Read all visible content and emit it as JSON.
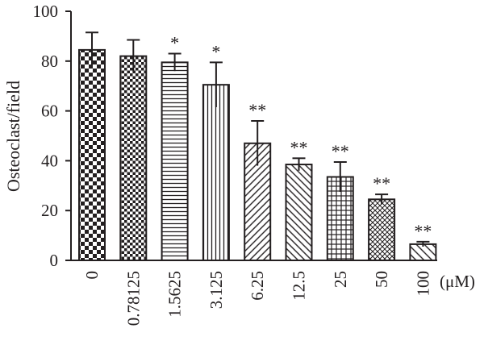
{
  "chart_data": {
    "type": "bar",
    "ylabel": "Osteoclast/field",
    "x_unit_label": "(μM)",
    "ylim": [
      0,
      100
    ],
    "yticks": [
      0,
      20,
      40,
      60,
      80,
      100
    ],
    "grid": false,
    "legend": "none",
    "categories": [
      "0",
      "0.78125",
      "1.5625",
      "3.125",
      "6.25",
      "12.5",
      "25",
      "50",
      "100"
    ],
    "values": [
      84.5,
      82,
      79.5,
      70.5,
      47,
      38.5,
      33.5,
      24.5,
      6.5
    ],
    "error_upper": [
      7,
      6.5,
      3.5,
      9,
      9,
      2.5,
      6,
      2,
      1
    ],
    "significance": [
      "",
      "",
      "*",
      "*",
      "**",
      "**",
      "**",
      "**",
      "**"
    ],
    "patterns": [
      "checker-large",
      "checker-small",
      "horizontal-lines",
      "vertical-lines",
      "diagonal-up",
      "diagonal-down",
      "grid",
      "cross-hatch",
      "diagonal-down-sparse"
    ],
    "colors": {
      "ink": "#231f20",
      "fill": "#ffffff"
    }
  }
}
